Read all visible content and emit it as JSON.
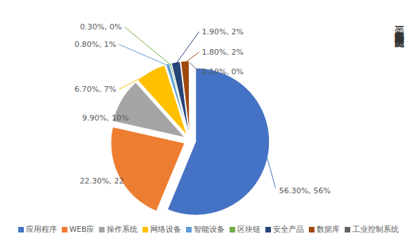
{
  "chart_data": {
    "type": "pie",
    "title": "二零二一年年漏洞影响对象类型统计图",
    "categories": [
      "应用程序",
      "WEB应",
      "操作系统",
      "网络设备",
      "智能设备",
      "区块链",
      "安全产品",
      "数据库",
      "工业控制系统"
    ],
    "values": [
      56.3,
      22.3,
      9.9,
      6.7,
      0.8,
      0.3,
      1.9,
      1.8,
      0.1
    ],
    "value_labels": [
      "56.30%, 56%",
      "22.30%, 22",
      "9.90%, 10%",
      "6.70%, 7%",
      "0.80%, 1%",
      "0.30%, 0%",
      "1.90%, 2%",
      "1.80%, 2%",
      "0.10%, 0%"
    ],
    "colors": [
      "#4472C4",
      "#ED7D31",
      "#A5A5A5",
      "#FFC000",
      "#5B9BD5",
      "#70AD47",
      "#264478",
      "#9E480E",
      "#636363"
    ],
    "data_labels": true,
    "legend": "bottom"
  }
}
